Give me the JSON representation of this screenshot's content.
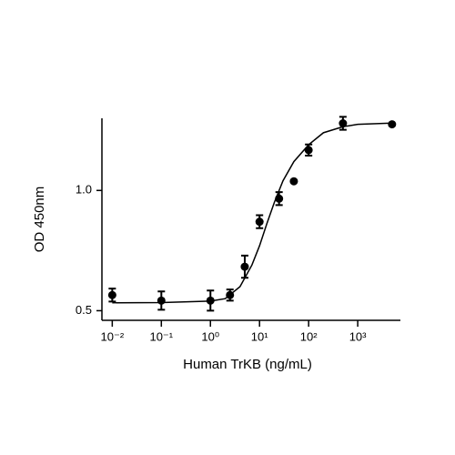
{
  "chart_data": {
    "type": "scatter",
    "xlabel": "Human TrKB (ng/mL)",
    "ylabel": "OD 450nm",
    "xscale": "log",
    "xlim": [
      0.007,
      7400
    ],
    "ylim": [
      0.46,
      1.3
    ],
    "xticks": [
      {
        "value": 0.01,
        "label": "10⁻²"
      },
      {
        "value": 0.1,
        "label": "10⁻¹"
      },
      {
        "value": 1,
        "label": "10⁰"
      },
      {
        "value": 10,
        "label": "10¹"
      },
      {
        "value": 100,
        "label": "10²"
      },
      {
        "value": 1000,
        "label": "10³"
      }
    ],
    "yticks": [
      0.5,
      {
        "value": 1,
        "label": "1.0"
      }
    ],
    "x": [
      0.01,
      0.1,
      1,
      2.5,
      5,
      10,
      25,
      50,
      100,
      500,
      5000
    ],
    "series": [
      {
        "color": "#000000",
        "values": [
          0.565,
          0.542,
          0.542,
          0.565,
          0.683,
          0.87,
          0.966,
          1.038,
          1.168,
          1.279,
          1.275
        ],
        "errors": [
          0.027,
          0.038,
          0.042,
          0.023,
          0.046,
          0.027,
          0.027,
          null,
          0.023,
          0.027,
          null
        ]
      }
    ],
    "curve": {
      "color": "#000000",
      "x": [
        0.01,
        0.1,
        1,
        2,
        4,
        7,
        10,
        14,
        20,
        30,
        50,
        100,
        200,
        500,
        1000,
        5000
      ],
      "values": [
        0.533,
        0.534,
        0.54,
        0.55,
        0.6,
        0.69,
        0.77,
        0.86,
        0.95,
        1.04,
        1.12,
        1.19,
        1.24,
        1.265,
        1.275,
        1.28
      ]
    }
  }
}
